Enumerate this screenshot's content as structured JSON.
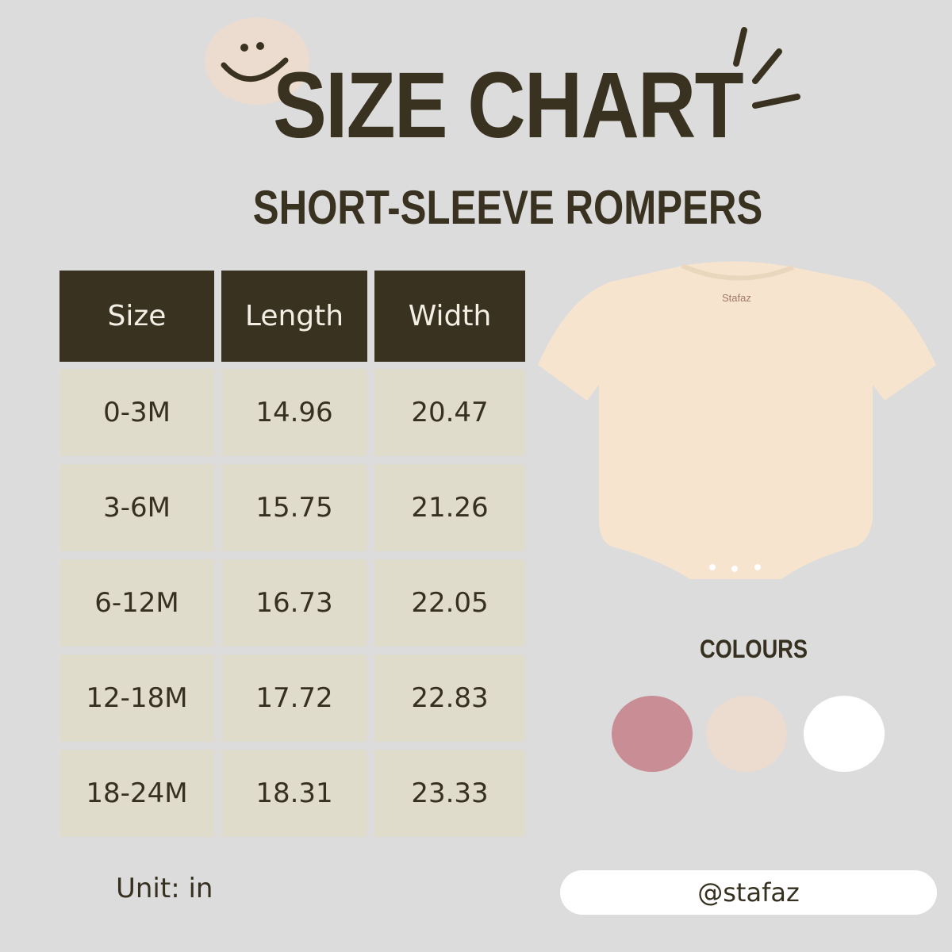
{
  "header": {
    "title": "SIZE CHART",
    "subtitle": "SHORT-SLEEVE ROMPERS"
  },
  "table": {
    "columns": [
      "Size",
      "Length",
      "Width"
    ],
    "rows": [
      [
        "0-3M",
        "14.96",
        "20.47"
      ],
      [
        "3-6M",
        "15.75",
        "21.26"
      ],
      [
        "6-12M",
        "16.73",
        "22.05"
      ],
      [
        "12-18M",
        "17.72",
        "22.83"
      ],
      [
        "18-24M",
        "18.31",
        "23.33"
      ]
    ]
  },
  "unit_label": "Unit: in",
  "product_label": "Stafaz",
  "colours": {
    "label": "COLOURS",
    "swatches": [
      "#c98d95",
      "#ecdcd0",
      "#ffffff"
    ]
  },
  "handle": "@stafaz",
  "theme": {
    "header_bg": "#3a3220",
    "cell_bg": "#dfdccb",
    "background": "#dcdcdc"
  }
}
